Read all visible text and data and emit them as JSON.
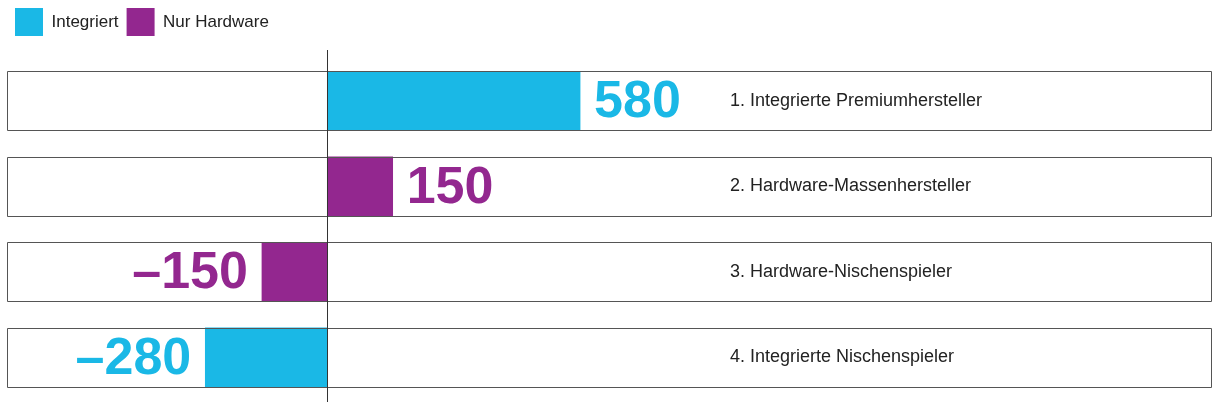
{
  "chart_data": {
    "type": "bar",
    "orientation": "horizontal",
    "stacked": true,
    "legend": "top left",
    "tick_labels": false,
    "xlim": [
      -735,
      2030
    ],
    "categories": [
      "1. Integrierte Premiumhersteller",
      "2. Hardware-Massenhersteller",
      "3. Hardware-Nischenspieler",
      "4. Integrierte Nischenspieler"
    ],
    "series": [
      {
        "name": "Integriert",
        "color": "#1ab8e6",
        "values": [
          580,
          null,
          null,
          -280
        ],
        "value_labels": [
          "580",
          null,
          null,
          "–280"
        ]
      },
      {
        "name": "Nur Hardware",
        "color": "#93278f",
        "values": [
          null,
          150,
          -150,
          null
        ],
        "value_labels": [
          null,
          "150",
          "–150",
          null
        ]
      }
    ]
  }
}
